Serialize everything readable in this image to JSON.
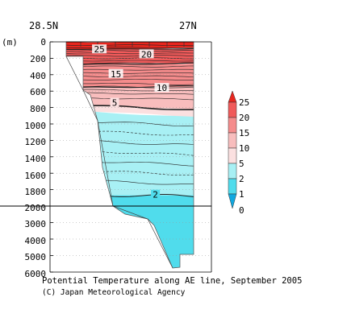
{
  "chart_data": {
    "type": "contour section",
    "title": "Potential Temperature along AE line, September 2005",
    "credit": "(C) Japan Meteorological Agency",
    "xlabel_left": "28.5N",
    "xlabel_right": "27N",
    "yunit": "(m)",
    "upper_ticks": [
      "0",
      "200",
      "400",
      "600",
      "800",
      "1000",
      "1200",
      "1400",
      "1600",
      "1800",
      "2000"
    ],
    "lower_ticks": [
      "3000",
      "4000",
      "5000",
      "6000"
    ],
    "upper_ylim": [
      0,
      2000
    ],
    "lower_ylim": [
      2000,
      6000
    ],
    "contour_labels": [
      {
        "text": "25",
        "depth": 90,
        "x": 0.26
      },
      {
        "text": "20",
        "depth": 150,
        "x": 0.63
      },
      {
        "text": "15",
        "depth": 390,
        "x": 0.39
      },
      {
        "text": "10",
        "depth": 560,
        "x": 0.75
      },
      {
        "text": "5",
        "depth": 740,
        "x": 0.38
      },
      {
        "text": "2",
        "depth": 1860,
        "x": 0.7
      }
    ],
    "colorbar_labels": [
      "25",
      "20",
      "15",
      "10",
      "5",
      "2",
      "1",
      "0"
    ],
    "colors": {
      "c25": "#e8261e",
      "c20": "#f05a5a",
      "c15": "#f58c8c",
      "c10": "#f8bdbd",
      "c5": "#fbe0e0",
      "c2": "#a8f0f4",
      "c1": "#50dcec",
      "c0": "#10a8e0"
    }
  }
}
